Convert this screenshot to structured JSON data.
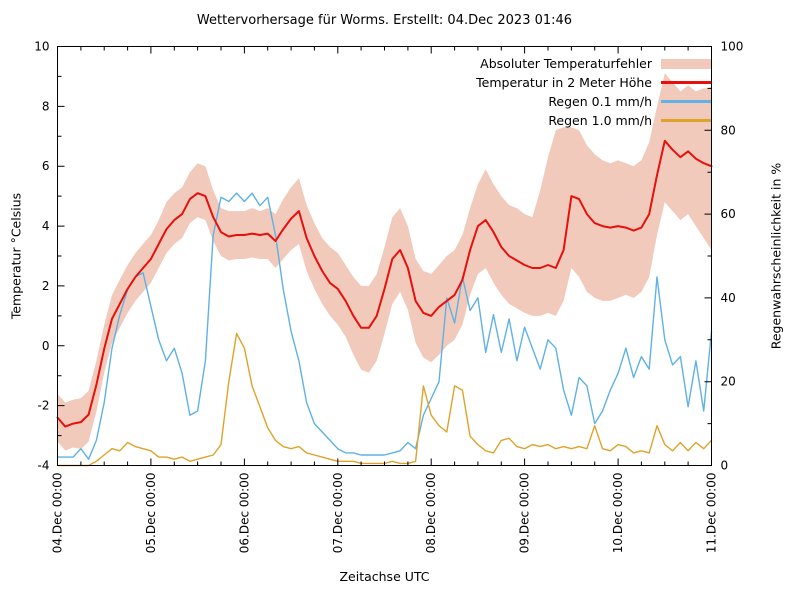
{
  "page": {
    "background": "#ffffff",
    "text_color": "#000000"
  },
  "chart_data": {
    "type": "line",
    "title": "Wettervorhersage für Worms. Erstellt: 04.Dec 2023 01:46",
    "xlabel": "Zeitachse UTC",
    "ylabel_left": "Temperatur °Celsius",
    "ylabel_right": "Regenwahrscheinlichkeit in %",
    "grid": "off",
    "legend_position": "top-right-inside",
    "x_range": [
      4,
      11
    ],
    "x_minor_step_days": 0.25,
    "x_major_step_days": 1,
    "x_ticks": [
      {
        "day": 4,
        "label": "04.Dec 00:00"
      },
      {
        "day": 5,
        "label": "05.Dec 00:00"
      },
      {
        "day": 6,
        "label": "06.Dec 00:00"
      },
      {
        "day": 7,
        "label": "07.Dec 00:00"
      },
      {
        "day": 8,
        "label": "08.Dec 00:00"
      },
      {
        "day": 9,
        "label": "09.Dec 00:00"
      },
      {
        "day": 10,
        "label": "10.Dec 00:00"
      },
      {
        "day": 11,
        "label": "11.Dec 00:00"
      }
    ],
    "y_left": {
      "min": -4,
      "max": 10,
      "major_step": 2,
      "minor_step": 1
    },
    "y_right": {
      "min": 0,
      "max": 100,
      "major_step": 20,
      "minor_step": 10
    },
    "sample_step_hours": 2,
    "start_day": 4,
    "series": [
      {
        "name": "Absoluter Temperaturfehler",
        "type": "band",
        "axis": "left",
        "color": "#f1cabb",
        "low": [
          -3.2,
          -3.5,
          -3.4,
          -3.45,
          -3.2,
          -2.2,
          -0.9,
          0.1,
          0.6,
          1.1,
          1.5,
          1.8,
          2.1,
          2.6,
          3.1,
          3.4,
          3.6,
          4.1,
          4.3,
          4.2,
          3.5,
          3.0,
          2.85,
          2.9,
          2.9,
          2.95,
          2.9,
          2.9,
          2.6,
          2.9,
          3.2,
          3.4,
          2.5,
          1.9,
          1.4,
          1.0,
          0.7,
          0.3,
          -0.3,
          -0.8,
          -0.9,
          -0.5,
          0.4,
          1.4,
          1.8,
          1.2,
          0.1,
          -0.4,
          -0.55,
          -0.3,
          0.0,
          0.2,
          0.7,
          1.7,
          2.4,
          2.6,
          2.1,
          1.7,
          1.4,
          1.25,
          1.1,
          1.0,
          1.0,
          1.1,
          1.0,
          1.5,
          2.6,
          2.3,
          1.8,
          1.6,
          1.5,
          1.5,
          1.6,
          1.7,
          1.6,
          1.8,
          2.3,
          3.7,
          4.8,
          4.5,
          4.2,
          4.4,
          4.0,
          3.6,
          3.2
        ],
        "high": [
          -1.6,
          -1.9,
          -1.8,
          -1.75,
          -1.5,
          -0.5,
          0.7,
          1.7,
          2.2,
          2.7,
          3.1,
          3.4,
          3.7,
          4.2,
          4.8,
          5.1,
          5.3,
          5.8,
          6.1,
          6.0,
          5.2,
          4.6,
          4.5,
          4.5,
          4.5,
          4.6,
          4.5,
          4.6,
          4.4,
          4.9,
          5.3,
          5.6,
          4.7,
          4.1,
          3.6,
          3.3,
          3.1,
          2.7,
          2.3,
          2.0,
          2.0,
          2.4,
          3.3,
          4.3,
          4.6,
          4.0,
          2.9,
          2.5,
          2.4,
          2.7,
          3.0,
          3.2,
          3.7,
          4.6,
          5.4,
          5.9,
          5.4,
          5.0,
          4.7,
          4.6,
          4.4,
          4.3,
          5.2,
          6.3,
          7.2,
          7.3,
          7.3,
          7.2,
          6.7,
          6.4,
          6.2,
          6.1,
          6.2,
          6.1,
          6.0,
          6.2,
          6.8,
          8.0,
          9.1,
          8.8,
          8.5,
          8.7,
          8.5,
          8.6,
          8.6
        ]
      },
      {
        "name": "Temperatur in 2 Meter Höhe",
        "type": "line",
        "axis": "left",
        "color": "#e8100c",
        "width": 2,
        "values": [
          -2.4,
          -2.7,
          -2.6,
          -2.55,
          -2.3,
          -1.3,
          -0.1,
          0.9,
          1.4,
          1.9,
          2.3,
          2.6,
          2.9,
          3.4,
          3.9,
          4.2,
          4.4,
          4.9,
          5.1,
          5.0,
          4.3,
          3.8,
          3.65,
          3.7,
          3.7,
          3.75,
          3.7,
          3.75,
          3.5,
          3.9,
          4.25,
          4.5,
          3.6,
          3.0,
          2.5,
          2.1,
          1.9,
          1.5,
          1.0,
          0.6,
          0.6,
          1.0,
          1.9,
          2.9,
          3.2,
          2.6,
          1.5,
          1.1,
          1.0,
          1.3,
          1.5,
          1.7,
          2.2,
          3.2,
          4.0,
          4.2,
          3.8,
          3.3,
          3.0,
          2.85,
          2.7,
          2.6,
          2.6,
          2.7,
          2.6,
          3.2,
          5.0,
          4.9,
          4.4,
          4.1,
          4.0,
          3.95,
          4.0,
          3.95,
          3.85,
          3.95,
          4.4,
          5.7,
          6.85,
          6.55,
          6.3,
          6.5,
          6.25,
          6.1,
          6.0
        ]
      },
      {
        "name": "Regen 0.1 mm/h",
        "type": "line",
        "axis": "right",
        "color": "#5fb1e6",
        "width": 1.4,
        "values": [
          2,
          2,
          2,
          4,
          1.5,
          6,
          15,
          28,
          36,
          42,
          45,
          46,
          38,
          30,
          25,
          28,
          22,
          12,
          13,
          25,
          55,
          64,
          63,
          65,
          63,
          65,
          62,
          64,
          55,
          42,
          32,
          25,
          15,
          10,
          8,
          6,
          4,
          3,
          3,
          2.5,
          2.5,
          2.5,
          2.5,
          3,
          3.5,
          5.5,
          4,
          12,
          16,
          20,
          40,
          34,
          45,
          37,
          40,
          27,
          36,
          27,
          35,
          25,
          33,
          28,
          23,
          30,
          28,
          18,
          12,
          21,
          19,
          10,
          13,
          18,
          22,
          28,
          21,
          26,
          23,
          45,
          30,
          24,
          26,
          14,
          25,
          13,
          32
        ]
      },
      {
        "name": "Regen 1.0 mm/h",
        "type": "line",
        "axis": "right",
        "color": "#dfa32a",
        "width": 1.4,
        "values": [
          0,
          0,
          0,
          0,
          0,
          1,
          2.5,
          4,
          3.5,
          5.5,
          4.5,
          4,
          3.5,
          2,
          2,
          1.5,
          2,
          1,
          1.5,
          2,
          2.5,
          5,
          20,
          31.5,
          28,
          19,
          14,
          9,
          6,
          4.5,
          4,
          4.5,
          3,
          2.5,
          2,
          1.5,
          1,
          1,
          1,
          0.5,
          0.5,
          0.5,
          0.5,
          1,
          0.5,
          0.5,
          1,
          19,
          12,
          9.5,
          8,
          19,
          18,
          7,
          5,
          3.5,
          3,
          6,
          6.5,
          4.5,
          4,
          5,
          4.5,
          5,
          4,
          4.5,
          4,
          4.5,
          4,
          9.5,
          4,
          3.5,
          5,
          4.5,
          3,
          3.5,
          3,
          9.5,
          5,
          3.5,
          5.5,
          3.5,
          5.5,
          4,
          6
        ]
      }
    ]
  }
}
